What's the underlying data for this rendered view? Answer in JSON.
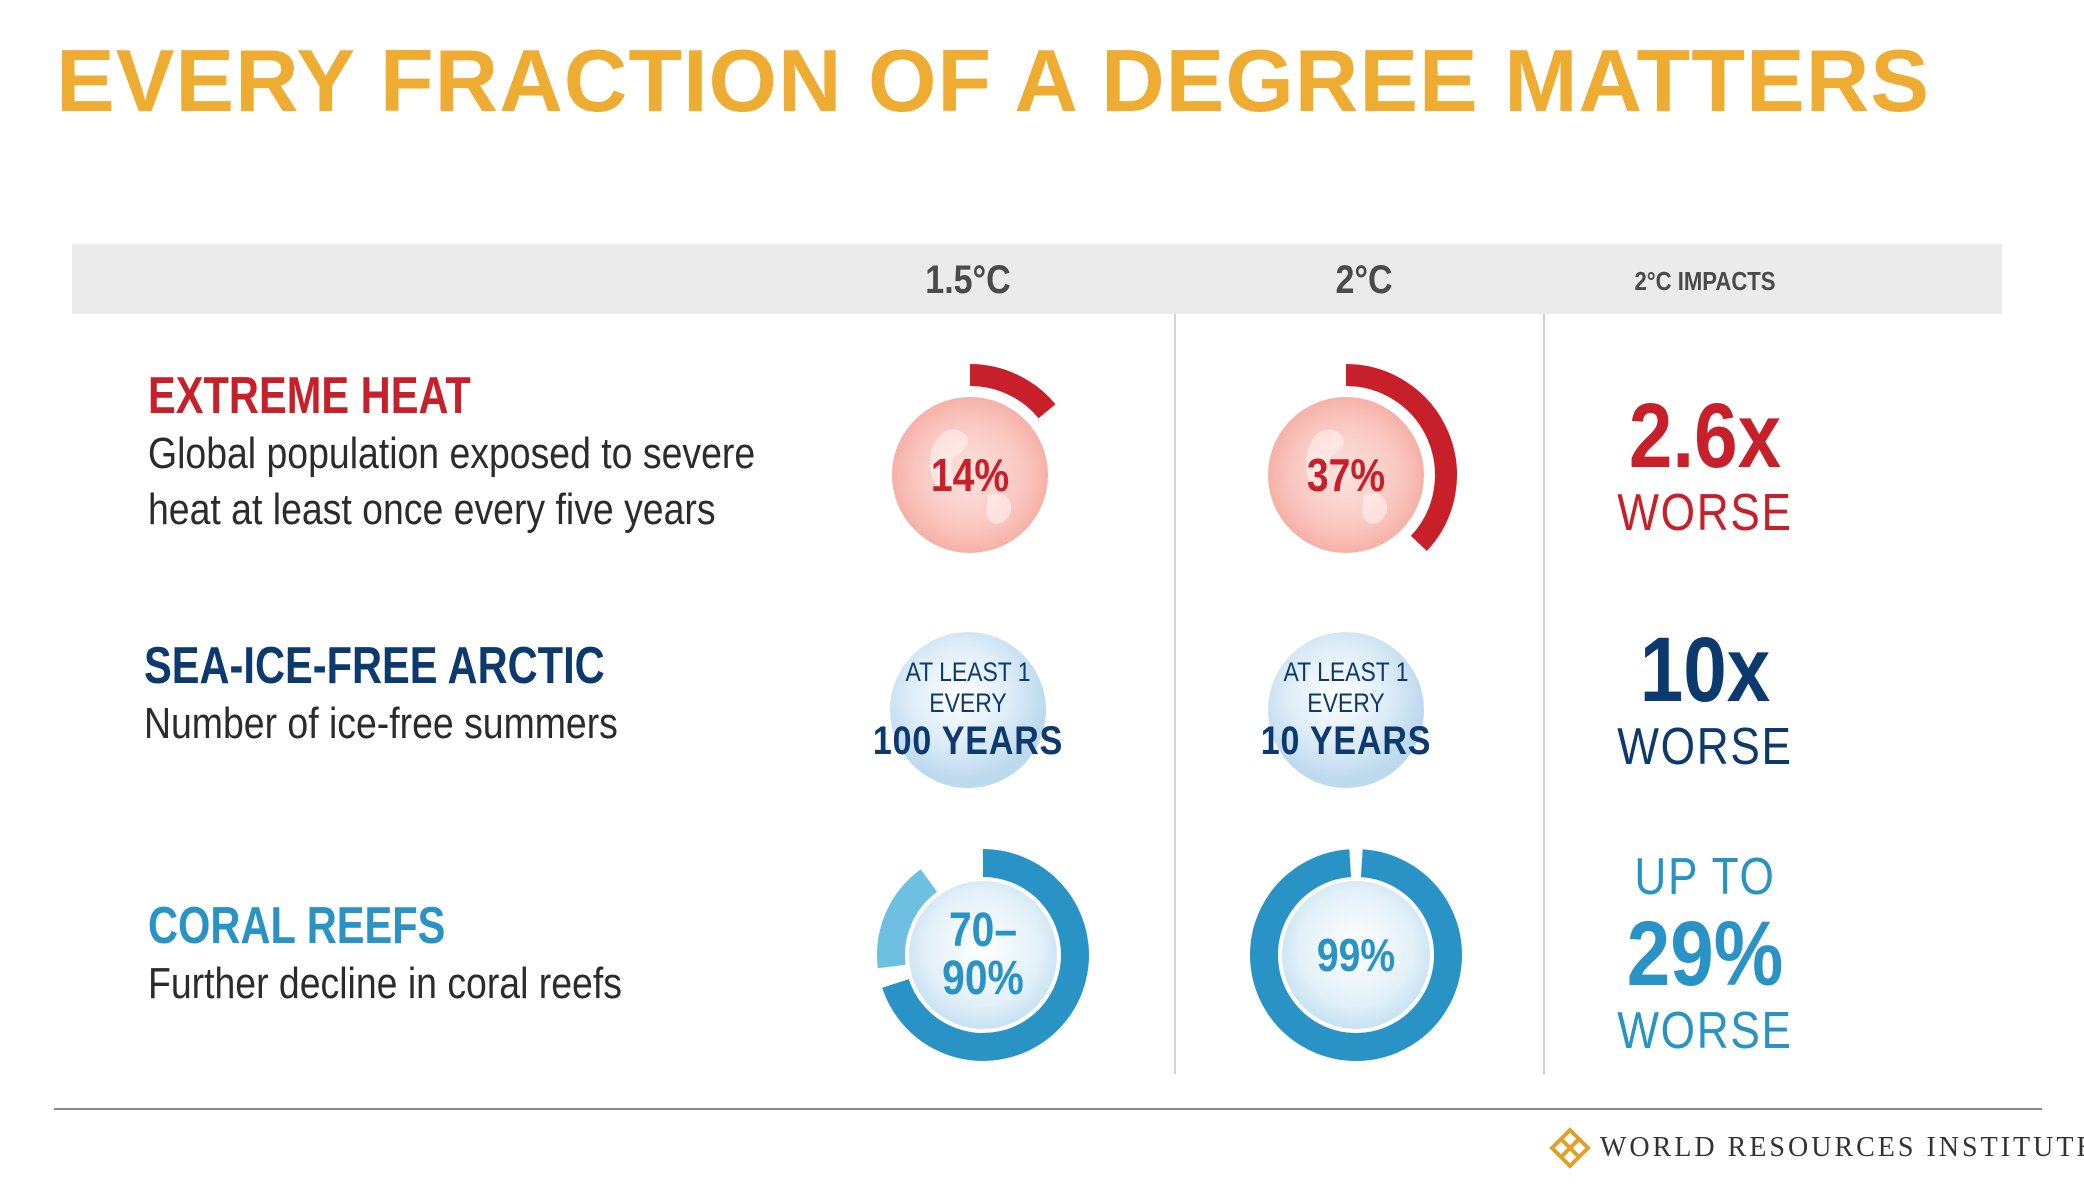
{
  "title": "EVERY FRACTION OF A DEGREE MATTERS",
  "colors": {
    "title": "#efac33",
    "heat": "#c8202a",
    "arctic": "#0d3a6e",
    "coral": "#2a93c6",
    "coral_light": "#6ec0e2"
  },
  "columns": {
    "c1": "1.5°C",
    "c2": "2°C",
    "c3": "2°C IMPACTS"
  },
  "rows": {
    "heat": {
      "title": "EXTREME HEAT",
      "desc_line1": "Global population exposed to severe",
      "desc_line2": "heat at least once every five years",
      "v15": "14%",
      "v2": "37%",
      "impact_value": "2.6x",
      "impact_word": "WORSE"
    },
    "arctic": {
      "title": "SEA-ICE-FREE ARCTIC",
      "desc": "Number of ice-free summers",
      "v15_line1": "AT LEAST 1 EVERY",
      "v15_line2": "100 YEARS",
      "v2_line1": "AT LEAST 1 EVERY",
      "v2_line2": "10 YEARS",
      "impact_value": "10x",
      "impact_word": "WORSE"
    },
    "coral": {
      "title": "CORAL REEFS",
      "desc": "Further decline in coral reefs",
      "v15_line1": "70–",
      "v15_line2": "90%",
      "v2": "99%",
      "impact_prefix": "UP TO",
      "impact_value": "29%",
      "impact_word": "WORSE"
    }
  },
  "chart_data": {
    "type": "table",
    "title": "EVERY FRACTION OF A DEGREE MATTERS",
    "columns": [
      "1.5°C",
      "2°C",
      "2°C IMPACTS"
    ],
    "series": [
      {
        "name": "EXTREME HEAT",
        "values": [
          14,
          37
        ],
        "unit": "%",
        "impact": "2.6x WORSE"
      },
      {
        "name": "SEA-ICE-FREE ARCTIC",
        "values": [
          "AT LEAST 1 EVERY 100 YEARS",
          "AT LEAST 1 EVERY 10 YEARS"
        ],
        "impact": "10x WORSE"
      },
      {
        "name": "CORAL REEFS",
        "values": [
          "70–90%",
          "99%"
        ],
        "range_15": [
          70,
          90
        ],
        "value_2": 99,
        "impact": "UP TO 29% WORSE"
      }
    ]
  },
  "footer": {
    "org": "WORLD RESOURCES INSTITUTE"
  }
}
